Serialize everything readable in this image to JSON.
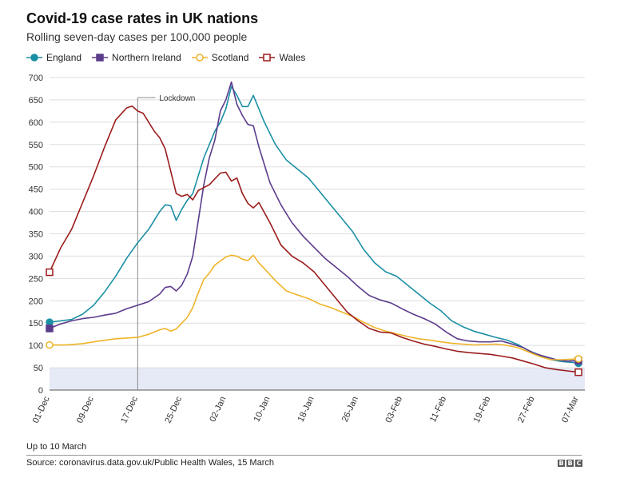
{
  "header": {
    "title": "Covid-19 case rates in UK nations",
    "subtitle": "Rolling seven-day cases per 100,000 people"
  },
  "footer": {
    "note": "Up to 10 March",
    "source": "Source: coronavirus.data.gov.uk/Public Health Wales, 15 March",
    "logo_letters": [
      "B",
      "B",
      "C"
    ]
  },
  "chart_data": {
    "type": "line",
    "title": "Covid-19 case rates in UK nations",
    "subtitle": "Rolling seven-day cases per 100,000 people",
    "xlabel": "",
    "ylabel": "",
    "ylim": [
      0,
      700
    ],
    "yticks": [
      0,
      50,
      100,
      150,
      200,
      250,
      300,
      350,
      400,
      450,
      500,
      550,
      600,
      650,
      700
    ],
    "x_range": [
      "2020-12-01",
      "2021-03-07"
    ],
    "x_tick_dates": [
      "2020-12-01",
      "2020-12-09",
      "2020-12-17",
      "2020-12-25",
      "2021-01-02",
      "2021-01-10",
      "2021-01-18",
      "2021-01-26",
      "2021-02-03",
      "2021-02-11",
      "2021-02-19",
      "2021-02-27",
      "2021-03-07"
    ],
    "x_tick_labels": [
      "01-Dec",
      "09-Dec",
      "17-Dec",
      "25-Dec",
      "02-Jan",
      "10-Jan",
      "18-Jan",
      "26-Jan",
      "03-Feb",
      "11-Feb",
      "19-Feb",
      "27-Feb",
      "07-Mar"
    ],
    "grid": "horizontal",
    "legend_position": "top-left",
    "annotations": [
      {
        "type": "vline",
        "date": "2020-12-17",
        "label": "Lockdown"
      },
      {
        "type": "band",
        "y_from": 0,
        "y_to": 50
      }
    ],
    "series": [
      {
        "name": "England",
        "color": "#1b8fa4",
        "marker": "circle-filled",
        "points": [
          [
            "2020-12-01",
            152
          ],
          [
            "2020-12-03",
            155
          ],
          [
            "2020-12-05",
            158
          ],
          [
            "2020-12-07",
            170
          ],
          [
            "2020-12-09",
            190
          ],
          [
            "2020-12-11",
            220
          ],
          [
            "2020-12-13",
            255
          ],
          [
            "2020-12-15",
            295
          ],
          [
            "2020-12-17",
            330
          ],
          [
            "2020-12-19",
            360
          ],
          [
            "2020-12-21",
            400
          ],
          [
            "2020-12-22",
            415
          ],
          [
            "2020-12-23",
            413
          ],
          [
            "2020-12-24",
            380
          ],
          [
            "2020-12-25",
            405
          ],
          [
            "2020-12-26",
            425
          ],
          [
            "2020-12-27",
            440
          ],
          [
            "2020-12-29",
            520
          ],
          [
            "2020-12-31",
            580
          ],
          [
            "2021-01-01",
            600
          ],
          [
            "2021-01-02",
            630
          ],
          [
            "2021-01-03",
            680
          ],
          [
            "2021-01-04",
            660
          ],
          [
            "2021-01-05",
            635
          ],
          [
            "2021-01-06",
            635
          ],
          [
            "2021-01-07",
            660
          ],
          [
            "2021-01-09",
            600
          ],
          [
            "2021-01-11",
            550
          ],
          [
            "2021-01-13",
            515
          ],
          [
            "2021-01-15",
            495
          ],
          [
            "2021-01-17",
            475
          ],
          [
            "2021-01-19",
            445
          ],
          [
            "2021-01-21",
            415
          ],
          [
            "2021-01-23",
            385
          ],
          [
            "2021-01-25",
            355
          ],
          [
            "2021-01-27",
            315
          ],
          [
            "2021-01-29",
            285
          ],
          [
            "2021-01-31",
            265
          ],
          [
            "2021-02-02",
            255
          ],
          [
            "2021-02-04",
            235
          ],
          [
            "2021-02-06",
            215
          ],
          [
            "2021-02-08",
            195
          ],
          [
            "2021-02-10",
            178
          ],
          [
            "2021-02-12",
            155
          ],
          [
            "2021-02-14",
            142
          ],
          [
            "2021-02-16",
            132
          ],
          [
            "2021-02-18",
            125
          ],
          [
            "2021-02-20",
            118
          ],
          [
            "2021-02-22",
            112
          ],
          [
            "2021-02-24",
            102
          ],
          [
            "2021-02-26",
            88
          ],
          [
            "2021-02-28",
            78
          ],
          [
            "2021-03-02",
            68
          ],
          [
            "2021-03-04",
            64
          ],
          [
            "2021-03-06",
            62
          ],
          [
            "2021-03-07",
            60
          ]
        ]
      },
      {
        "name": "Northern Ireland",
        "color": "#5b3b8c",
        "marker": "square-filled",
        "points": [
          [
            "2020-12-01",
            138
          ],
          [
            "2020-12-03",
            148
          ],
          [
            "2020-12-05",
            155
          ],
          [
            "2020-12-07",
            160
          ],
          [
            "2020-12-09",
            163
          ],
          [
            "2020-12-11",
            168
          ],
          [
            "2020-12-13",
            172
          ],
          [
            "2020-12-15",
            182
          ],
          [
            "2020-12-17",
            190
          ],
          [
            "2020-12-19",
            198
          ],
          [
            "2020-12-21",
            215
          ],
          [
            "2020-12-22",
            230
          ],
          [
            "2020-12-23",
            232
          ],
          [
            "2020-12-24",
            222
          ],
          [
            "2020-12-25",
            235
          ],
          [
            "2020-12-26",
            260
          ],
          [
            "2020-12-27",
            300
          ],
          [
            "2020-12-28",
            380
          ],
          [
            "2020-12-29",
            460
          ],
          [
            "2020-12-30",
            520
          ],
          [
            "2020-12-31",
            560
          ],
          [
            "2021-01-01",
            625
          ],
          [
            "2021-01-02",
            650
          ],
          [
            "2021-01-03",
            690
          ],
          [
            "2021-01-04",
            640
          ],
          [
            "2021-01-05",
            615
          ],
          [
            "2021-01-06",
            595
          ],
          [
            "2021-01-07",
            592
          ],
          [
            "2021-01-08",
            545
          ],
          [
            "2021-01-10",
            465
          ],
          [
            "2021-01-12",
            415
          ],
          [
            "2021-01-14",
            375
          ],
          [
            "2021-01-16",
            345
          ],
          [
            "2021-01-18",
            320
          ],
          [
            "2021-01-20",
            295
          ],
          [
            "2021-01-22",
            275
          ],
          [
            "2021-01-24",
            255
          ],
          [
            "2021-01-26",
            232
          ],
          [
            "2021-01-28",
            212
          ],
          [
            "2021-01-30",
            202
          ],
          [
            "2021-02-01",
            195
          ],
          [
            "2021-02-03",
            182
          ],
          [
            "2021-02-05",
            170
          ],
          [
            "2021-02-07",
            160
          ],
          [
            "2021-02-09",
            148
          ],
          [
            "2021-02-11",
            130
          ],
          [
            "2021-02-13",
            115
          ],
          [
            "2021-02-15",
            110
          ],
          [
            "2021-02-17",
            108
          ],
          [
            "2021-02-19",
            108
          ],
          [
            "2021-02-21",
            110
          ],
          [
            "2021-02-23",
            103
          ],
          [
            "2021-02-25",
            95
          ],
          [
            "2021-02-27",
            82
          ],
          [
            "2021-03-01",
            75
          ],
          [
            "2021-03-03",
            68
          ],
          [
            "2021-03-05",
            65
          ],
          [
            "2021-03-07",
            66
          ]
        ]
      },
      {
        "name": "Scotland",
        "color": "#f0b429",
        "marker": "circle-open",
        "points": [
          [
            "2020-12-01",
            101
          ],
          [
            "2020-12-04",
            101
          ],
          [
            "2020-12-07",
            104
          ],
          [
            "2020-12-10",
            110
          ],
          [
            "2020-12-13",
            115
          ],
          [
            "2020-12-17",
            118
          ],
          [
            "2020-12-19",
            125
          ],
          [
            "2020-12-21",
            135
          ],
          [
            "2020-12-22",
            138
          ],
          [
            "2020-12-23",
            132
          ],
          [
            "2020-12-24",
            137
          ],
          [
            "2020-12-25",
            150
          ],
          [
            "2020-12-26",
            163
          ],
          [
            "2020-12-27",
            185
          ],
          [
            "2020-12-28",
            218
          ],
          [
            "2020-12-29",
            248
          ],
          [
            "2020-12-30",
            262
          ],
          [
            "2020-12-31",
            280
          ],
          [
            "2021-01-02",
            298
          ],
          [
            "2021-01-03",
            302
          ],
          [
            "2021-01-04",
            300
          ],
          [
            "2021-01-05",
            293
          ],
          [
            "2021-01-06",
            290
          ],
          [
            "2021-01-07",
            302
          ],
          [
            "2021-01-08",
            285
          ],
          [
            "2021-01-09",
            272
          ],
          [
            "2021-01-11",
            245
          ],
          [
            "2021-01-13",
            222
          ],
          [
            "2021-01-15",
            213
          ],
          [
            "2021-01-17",
            205
          ],
          [
            "2021-01-19",
            193
          ],
          [
            "2021-01-21",
            185
          ],
          [
            "2021-01-23",
            175
          ],
          [
            "2021-01-25",
            165
          ],
          [
            "2021-01-27",
            152
          ],
          [
            "2021-01-29",
            140
          ],
          [
            "2021-01-31",
            132
          ],
          [
            "2021-02-02",
            126
          ],
          [
            "2021-02-04",
            120
          ],
          [
            "2021-02-06",
            115
          ],
          [
            "2021-02-08",
            112
          ],
          [
            "2021-02-10",
            108
          ],
          [
            "2021-02-12",
            105
          ],
          [
            "2021-02-14",
            103
          ],
          [
            "2021-02-16",
            101
          ],
          [
            "2021-02-18",
            102
          ],
          [
            "2021-02-20",
            103
          ],
          [
            "2021-02-22",
            100
          ],
          [
            "2021-02-24",
            95
          ],
          [
            "2021-02-26",
            85
          ],
          [
            "2021-02-28",
            75
          ],
          [
            "2021-03-02",
            68
          ],
          [
            "2021-03-04",
            68
          ],
          [
            "2021-03-07",
            70
          ]
        ]
      },
      {
        "name": "Wales",
        "color": "#9b1c1c",
        "marker": "square-open",
        "points": [
          [
            "2020-12-01",
            264
          ],
          [
            "2020-12-03",
            318
          ],
          [
            "2020-12-05",
            360
          ],
          [
            "2020-12-07",
            420
          ],
          [
            "2020-12-09",
            480
          ],
          [
            "2020-12-11",
            545
          ],
          [
            "2020-12-13",
            605
          ],
          [
            "2020-12-15",
            632
          ],
          [
            "2020-12-16",
            636
          ],
          [
            "2020-12-17",
            625
          ],
          [
            "2020-12-18",
            620
          ],
          [
            "2020-12-19",
            600
          ],
          [
            "2020-12-20",
            580
          ],
          [
            "2020-12-21",
            565
          ],
          [
            "2020-12-22",
            540
          ],
          [
            "2020-12-23",
            490
          ],
          [
            "2020-12-24",
            440
          ],
          [
            "2020-12-25",
            434
          ],
          [
            "2020-12-26",
            438
          ],
          [
            "2020-12-27",
            426
          ],
          [
            "2020-12-28",
            447
          ],
          [
            "2020-12-30",
            460
          ],
          [
            "2021-01-01",
            486
          ],
          [
            "2021-01-02",
            488
          ],
          [
            "2021-01-03",
            468
          ],
          [
            "2021-01-04",
            475
          ],
          [
            "2021-01-05",
            440
          ],
          [
            "2021-01-06",
            418
          ],
          [
            "2021-01-07",
            408
          ],
          [
            "2021-01-08",
            420
          ],
          [
            "2021-01-10",
            375
          ],
          [
            "2021-01-12",
            325
          ],
          [
            "2021-01-14",
            300
          ],
          [
            "2021-01-16",
            285
          ],
          [
            "2021-01-18",
            265
          ],
          [
            "2021-01-20",
            235
          ],
          [
            "2021-01-22",
            205
          ],
          [
            "2021-01-24",
            175
          ],
          [
            "2021-01-26",
            155
          ],
          [
            "2021-01-28",
            138
          ],
          [
            "2021-01-30",
            130
          ],
          [
            "2021-02-01",
            128
          ],
          [
            "2021-02-03",
            118
          ],
          [
            "2021-02-05",
            110
          ],
          [
            "2021-02-07",
            103
          ],
          [
            "2021-02-09",
            98
          ],
          [
            "2021-02-11",
            92
          ],
          [
            "2021-02-13",
            87
          ],
          [
            "2021-02-15",
            84
          ],
          [
            "2021-02-17",
            82
          ],
          [
            "2021-02-19",
            80
          ],
          [
            "2021-02-21",
            76
          ],
          [
            "2021-02-23",
            72
          ],
          [
            "2021-02-25",
            65
          ],
          [
            "2021-02-27",
            58
          ],
          [
            "2021-03-01",
            50
          ],
          [
            "2021-03-03",
            46
          ],
          [
            "2021-03-05",
            43
          ],
          [
            "2021-03-07",
            40
          ]
        ]
      }
    ]
  }
}
